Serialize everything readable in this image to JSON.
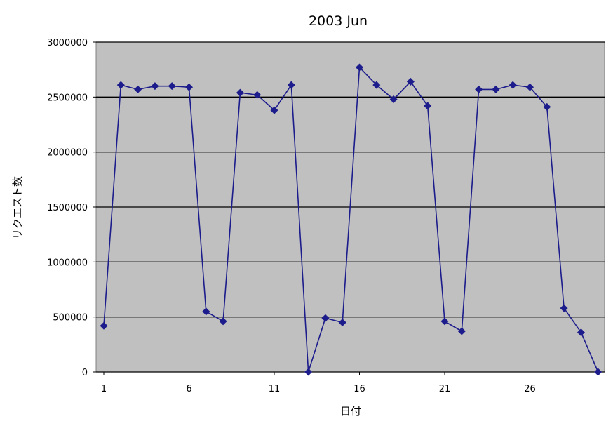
{
  "chart_data": {
    "type": "line",
    "title": "2003 Jun",
    "xlabel": "日付",
    "ylabel": "リクエスト数",
    "x": [
      1,
      2,
      3,
      4,
      5,
      6,
      7,
      8,
      9,
      10,
      11,
      12,
      13,
      14,
      15,
      16,
      17,
      18,
      19,
      20,
      21,
      22,
      23,
      24,
      25,
      26,
      27,
      28,
      29,
      30
    ],
    "x_ticks": [
      "1",
      "6",
      "11",
      "16",
      "21",
      "26"
    ],
    "y_ticks": [
      "0",
      "500000",
      "1000000",
      "1500000",
      "2000000",
      "2500000",
      "3000000"
    ],
    "ylim": [
      0,
      3000000
    ],
    "xlim": [
      1,
      30
    ],
    "grid": "horizontal",
    "legend": "none",
    "series": [
      {
        "values": [
          420000,
          2610000,
          2570000,
          2600000,
          2600000,
          2590000,
          550000,
          460000,
          2540000,
          2520000,
          2380000,
          2610000,
          0,
          490000,
          450000,
          2770000,
          2610000,
          2480000,
          2640000,
          2420000,
          460000,
          370000,
          2570000,
          2570000,
          2610000,
          2590000,
          2410000,
          580000,
          360000,
          0
        ],
        "color": "#1c1c8c"
      }
    ],
    "colors": {
      "plot_background": "#c0c0c0",
      "gridline": "#000000",
      "line": "#1c1c8c",
      "marker": "#1c1c8c"
    }
  }
}
